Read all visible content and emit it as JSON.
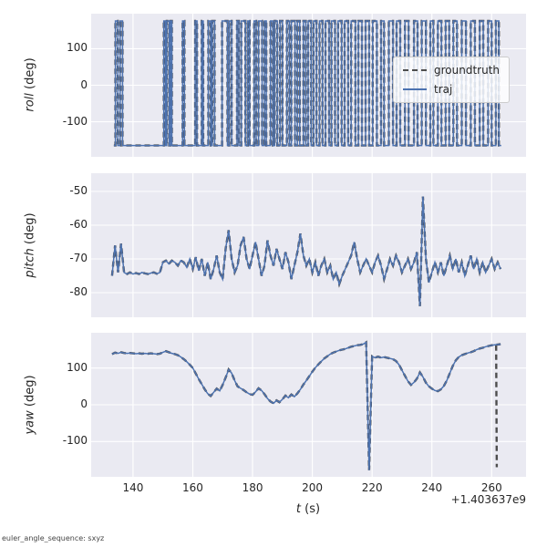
{
  "figure": {
    "footer": "euler_angle_sequence: sxyz",
    "x_offset_label": "+1.403637e9",
    "xlabel_var": "t",
    "xlabel_unit": " (s)"
  },
  "legend": {
    "items": [
      {
        "label": "groundtruth",
        "style": "dashed",
        "color": "#4d4d4d"
      },
      {
        "label": "traj",
        "style": "solid",
        "color": "#4c72b0"
      }
    ]
  },
  "chart_data": {
    "type": "line",
    "title": "",
    "xlabel": "t (s)",
    "x_offset": "+1.403637e9",
    "xlim": [
      126,
      271.5
    ],
    "xticks": [
      140,
      160,
      180,
      200,
      220,
      240,
      260
    ],
    "grid": true,
    "legend_position": "upper-right-of-first-subplot",
    "colors": {
      "axes_bg": "#eaeaf2",
      "grid": "#ffffff",
      "traj": "#4c72b0",
      "groundtruth": "#4d4d4d"
    },
    "subplots": [
      {
        "ylabel_var": "roll",
        "ylabel_unit": " (deg)",
        "ylim": [
          -196,
          196
        ],
        "yticks": [
          100,
          0,
          -100
        ],
        "steps_end": 263.2,
        "steps": [
          [
            133.6,
            -165
          ],
          [
            134.1,
            176
          ],
          [
            134.9,
            -165
          ],
          [
            135.7,
            176
          ],
          [
            136.5,
            -165
          ],
          [
            150.3,
            176
          ],
          [
            150.9,
            -165
          ],
          [
            151.3,
            176
          ],
          [
            152.1,
            -165
          ],
          [
            152.5,
            176
          ],
          [
            153.0,
            -165
          ],
          [
            156.6,
            176
          ],
          [
            157.2,
            -165
          ],
          [
            160.8,
            176
          ],
          [
            161.4,
            -165
          ],
          [
            163.0,
            176
          ],
          [
            163.5,
            -165
          ],
          [
            165.2,
            176
          ],
          [
            166.0,
            -165
          ],
          [
            166.5,
            176
          ],
          [
            167.3,
            -165
          ],
          [
            169.8,
            176
          ],
          [
            171.6,
            -165
          ],
          [
            172.2,
            176
          ],
          [
            173.0,
            -165
          ],
          [
            174.8,
            176
          ],
          [
            175.4,
            -165
          ],
          [
            176.2,
            176
          ],
          [
            177.6,
            -165
          ],
          [
            178.4,
            176
          ],
          [
            179.0,
            -165
          ],
          [
            180.5,
            176
          ],
          [
            181.2,
            -165
          ],
          [
            182.0,
            176
          ],
          [
            183.2,
            -165
          ],
          [
            184.0,
            176
          ],
          [
            184.6,
            -165
          ],
          [
            186.0,
            176
          ],
          [
            186.8,
            -165
          ],
          [
            187.4,
            176
          ],
          [
            188.3,
            -165
          ],
          [
            189.2,
            176
          ],
          [
            190.0,
            -165
          ],
          [
            191.5,
            176
          ],
          [
            192.3,
            -165
          ],
          [
            193.0,
            176
          ],
          [
            194.2,
            -165
          ],
          [
            195.0,
            176
          ],
          [
            195.8,
            -165
          ],
          [
            197.0,
            176
          ],
          [
            197.8,
            -165
          ],
          [
            198.6,
            176
          ],
          [
            199.6,
            -165
          ],
          [
            200.4,
            176
          ],
          [
            201.4,
            -165
          ],
          [
            202.4,
            176
          ],
          [
            203.4,
            -165
          ],
          [
            204.4,
            176
          ],
          [
            205.6,
            -165
          ],
          [
            206.4,
            176
          ],
          [
            207.6,
            -165
          ],
          [
            208.6,
            176
          ],
          [
            209.8,
            -165
          ],
          [
            210.8,
            176
          ],
          [
            212.0,
            -165
          ],
          [
            213.0,
            176
          ],
          [
            214.4,
            -165
          ],
          [
            215.4,
            176
          ],
          [
            216.6,
            -165
          ],
          [
            217.8,
            176
          ],
          [
            219.0,
            -165
          ],
          [
            220.2,
            176
          ],
          [
            221.6,
            -165
          ],
          [
            223.0,
            176
          ],
          [
            224.0,
            -165
          ],
          [
            225.6,
            176
          ],
          [
            227.0,
            -165
          ],
          [
            228.2,
            176
          ],
          [
            229.4,
            -165
          ],
          [
            231.0,
            176
          ],
          [
            232.2,
            -165
          ],
          [
            234.0,
            176
          ],
          [
            235.2,
            -165
          ],
          [
            236.6,
            176
          ],
          [
            238.0,
            -165
          ],
          [
            239.5,
            176
          ],
          [
            240.5,
            -165
          ],
          [
            242.0,
            176
          ],
          [
            243.2,
            -165
          ],
          [
            244.6,
            176
          ],
          [
            245.8,
            -165
          ],
          [
            247.2,
            176
          ],
          [
            248.4,
            -165
          ],
          [
            250.0,
            176
          ],
          [
            251.4,
            -165
          ],
          [
            253.0,
            176
          ],
          [
            254.4,
            -165
          ],
          [
            256.0,
            176
          ],
          [
            257.2,
            -165
          ],
          [
            258.8,
            176
          ],
          [
            260.0,
            -165
          ],
          [
            261.4,
            176
          ],
          [
            262.4,
            -165
          ]
        ]
      },
      {
        "ylabel_var": "pitch",
        "ylabel_unit": " (deg)",
        "ylim": [
          -87.3,
          -44.6
        ],
        "yticks": [
          -50,
          -60,
          -70,
          -80
        ],
        "x_start": 133,
        "x_step": 1,
        "y": [
          -75,
          -66,
          -74,
          -65.5,
          -74,
          -74.5,
          -74,
          -74.5,
          -74.2,
          -74.5,
          -74,
          -74.3,
          -74.5,
          -74.2,
          -74,
          -74.4,
          -74,
          -71,
          -70.5,
          -71.5,
          -70.5,
          -71,
          -72,
          -70.5,
          -71,
          -72.5,
          -70,
          -73,
          -69.5,
          -73.5,
          -70,
          -75,
          -71,
          -76,
          -73,
          -69,
          -74,
          -76,
          -67,
          -61.5,
          -70,
          -74,
          -72,
          -66,
          -63.5,
          -70,
          -73,
          -69,
          -65,
          -70,
          -75,
          -72,
          -64.5,
          -69,
          -72,
          -67,
          -70,
          -73,
          -68,
          -71,
          -76,
          -72,
          -68,
          -62.5,
          -69,
          -72,
          -70,
          -74,
          -71,
          -75,
          -72,
          -70,
          -74,
          -72,
          -76,
          -74,
          -77.5,
          -75,
          -73,
          -71,
          -69,
          -65,
          -70,
          -74,
          -72,
          -70,
          -72,
          -74,
          -71,
          -69,
          -72,
          -76,
          -73,
          -70,
          -72,
          -69,
          -71,
          -74,
          -72,
          -70,
          -73,
          -71,
          -68,
          -84,
          -51.5,
          -70,
          -77,
          -74,
          -71,
          -74,
          -71,
          -75,
          -72,
          -69,
          -73,
          -70,
          -74,
          -71,
          -75,
          -72,
          -69,
          -73,
          -70,
          -74,
          -71,
          -74,
          -72,
          -70,
          -73,
          -71,
          -73
        ]
      },
      {
        "ylabel_var": "yaw",
        "ylabel_unit": " (deg)",
        "ylim": [
          -196,
          196
        ],
        "yticks": [
          100,
          0,
          -100
        ],
        "x_start": 133,
        "x_step": 1,
        "y": [
          138,
          142,
          140,
          143,
          141,
          140,
          141,
          140,
          139,
          140,
          139,
          140,
          139,
          140,
          139,
          138,
          139,
          143,
          146,
          143,
          140,
          138,
          135,
          130,
          124,
          117,
          109,
          100,
          85,
          70,
          56,
          42,
          30,
          24,
          34,
          44,
          38,
          54,
          74,
          96,
          86,
          66,
          50,
          45,
          40,
          34,
          29,
          27,
          35,
          45,
          39,
          29,
          17,
          9,
          4,
          12,
          7,
          15,
          25,
          19,
          28,
          22,
          31,
          42,
          55,
          66,
          78,
          90,
          101,
          110,
          118,
          126,
          132,
          138,
          142,
          145,
          148,
          150,
          152,
          155,
          158,
          160,
          162,
          163,
          165,
          170,
          -178,
          132,
          128,
          131,
          128,
          130,
          128,
          126,
          124,
          119,
          109,
          94,
          79,
          64,
          54,
          61,
          71,
          88,
          76,
          60,
          50,
          44,
          39,
          37,
          42,
          51,
          66,
          86,
          106,
          121,
          130,
          135,
          138,
          141,
          143,
          146,
          150,
          153,
          155,
          158,
          160,
          162,
          163,
          164,
          165
        ],
        "gt_extra": [
          [
            261.5,
            163
          ],
          [
            261.7,
            -170
          ]
        ]
      }
    ]
  }
}
